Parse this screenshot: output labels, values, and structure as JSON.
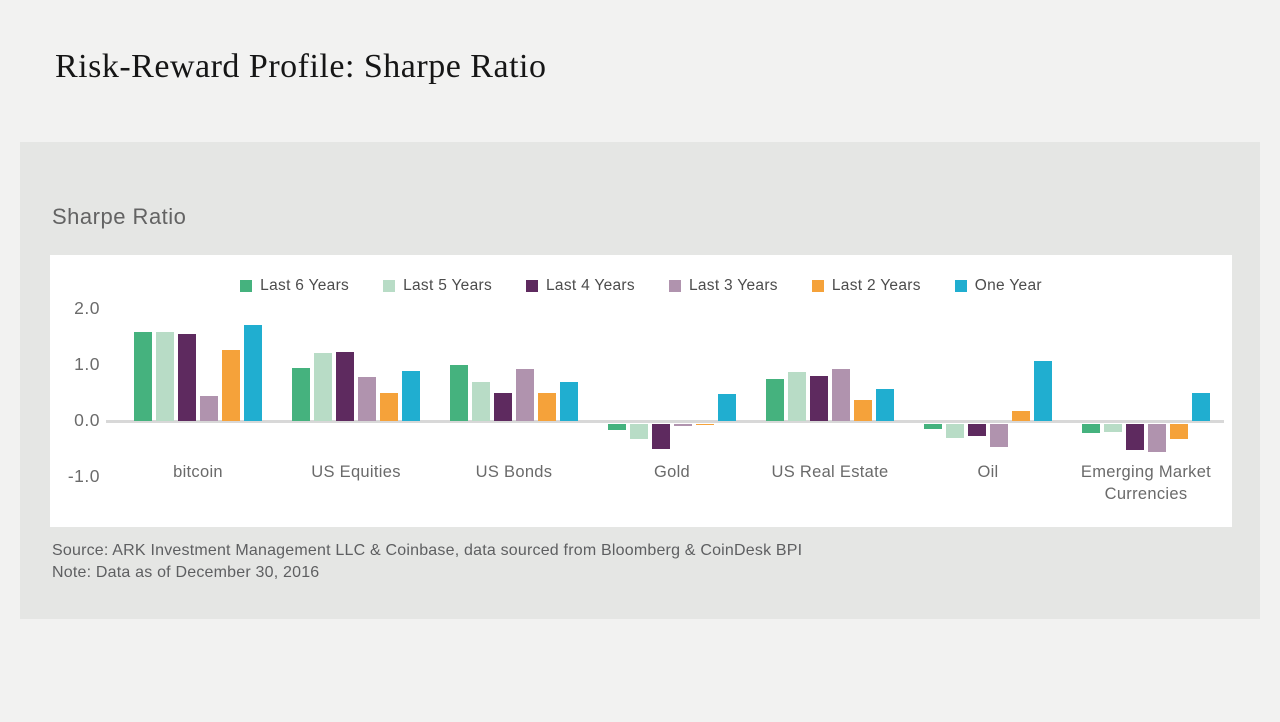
{
  "page": {
    "title": "Risk-Reward Profile: Sharpe Ratio"
  },
  "panel": {
    "chart_label": "Sharpe Ratio",
    "source_line1": "Source: ARK Investment Management LLC & Coinbase, data sourced from Bloomberg & CoinDesk BPI",
    "source_line2": "Note: Data as of December 30, 2016"
  },
  "colors": {
    "page_background": "#f2f2f1",
    "panel_background": "#e5e6e4",
    "chart_background": "#ffffff",
    "baseline": "#d8d8d8",
    "axis_text": "#6b6b6b",
    "title_text": "#161616"
  },
  "chart_data": {
    "type": "bar",
    "title": "Sharpe Ratio",
    "xlabel": "",
    "ylabel": "",
    "ylim": [
      -1.0,
      2.0
    ],
    "y_ticks": [
      {
        "value": 2.0,
        "label": "2.0"
      },
      {
        "value": 1.0,
        "label": "1.0"
      },
      {
        "value": 0.0,
        "label": "0.0"
      },
      {
        "value": -1.0,
        "label": "-1.0"
      }
    ],
    "grid": false,
    "legend_position": "top",
    "categories": [
      "bitcoin",
      "US Equities",
      "US Bonds",
      "Gold",
      "US Real Estate",
      "Oil",
      "Emerging Market Currencies"
    ],
    "series": [
      {
        "name": "Last 6 Years",
        "color": "#45b27e",
        "values": [
          1.59,
          0.95,
          1.0,
          -0.16,
          0.75,
          -0.15,
          -0.22
        ]
      },
      {
        "name": "Last 5 Years",
        "color": "#b8dcc6",
        "values": [
          1.59,
          1.22,
          0.7,
          -0.32,
          0.88,
          -0.3,
          -0.2
        ]
      },
      {
        "name": "Last 4 Years",
        "color": "#5e2a5f",
        "values": [
          1.55,
          1.23,
          0.5,
          -0.5,
          0.8,
          -0.27,
          -0.52
        ]
      },
      {
        "name": "Last 3 Years",
        "color": "#b093ae",
        "values": [
          0.45,
          0.78,
          0.93,
          -0.09,
          0.93,
          -0.47,
          -0.55
        ]
      },
      {
        "name": "Last 2 Years",
        "color": "#f5a23a",
        "values": [
          1.27,
          0.5,
          0.5,
          -0.04,
          0.37,
          0.18,
          -0.33
        ]
      },
      {
        "name": "One Year",
        "color": "#20aed0",
        "values": [
          1.71,
          0.9,
          0.7,
          0.48,
          0.58,
          1.07,
          0.5
        ]
      }
    ]
  }
}
